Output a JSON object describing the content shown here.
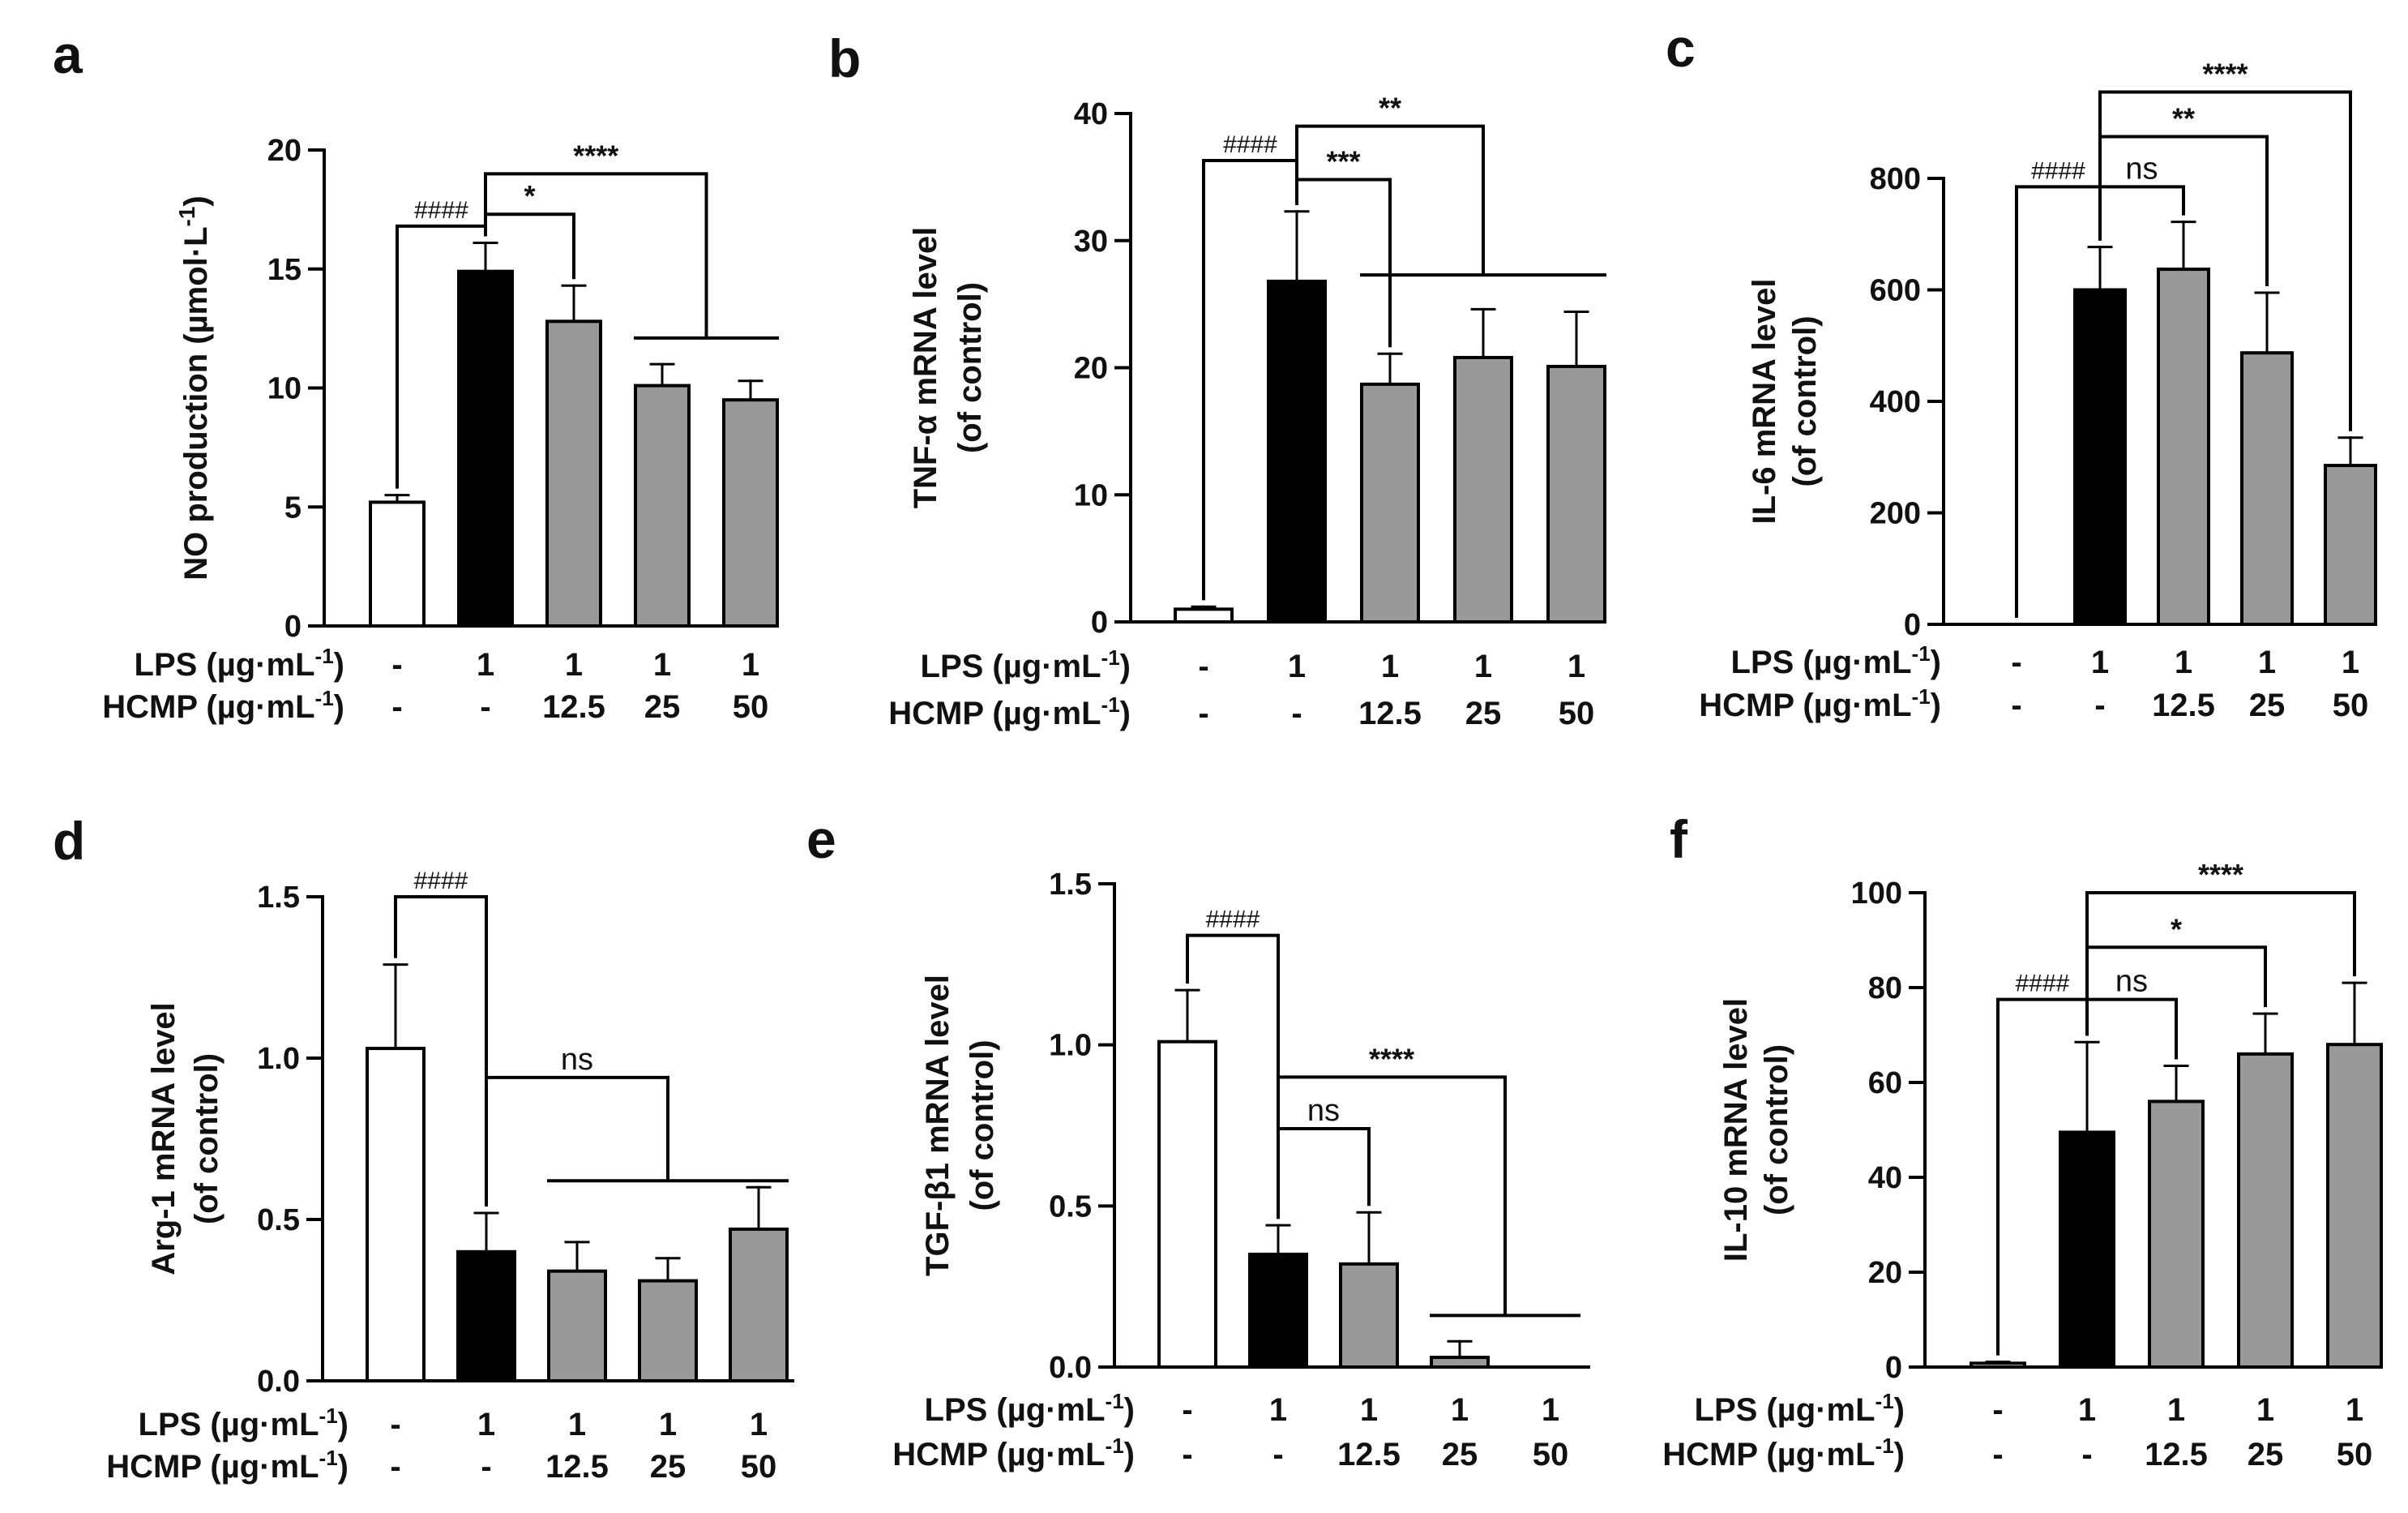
{
  "row_labels": {
    "lps": "LPS (µg·mL",
    "hcmp": "HCMP (µg·mL",
    "exp": "-1",
    "close": ")"
  },
  "chart_data": [
    {
      "panel": "a",
      "type": "bar",
      "ylabel": "NO production (µmol·L",
      "ylabel_sup": "-1",
      "ylabel_close": ")",
      "ylabel2": "",
      "ylim": [
        0,
        20
      ],
      "yticks": [
        "0",
        "5",
        "10",
        "15",
        "20"
      ],
      "ytick_values": [
        0,
        5,
        10,
        15,
        20
      ],
      "lps": [
        "-",
        "1",
        "1",
        "1",
        "1"
      ],
      "hcmp": [
        "-",
        "-",
        "12.5",
        "25",
        "50"
      ],
      "values": [
        5.2,
        14.9,
        12.8,
        10.1,
        9.5
      ],
      "errors": [
        0.3,
        1.2,
        1.5,
        0.9,
        0.8
      ],
      "fills": [
        "white",
        "black",
        "gray",
        "gray",
        "gray"
      ],
      "annotations": [
        {
          "kind": "bracket",
          "from": 0,
          "to": 1,
          "label": "####",
          "style": "hash",
          "level": 16.8
        },
        {
          "kind": "bracket",
          "from": 1,
          "to": 2,
          "label": "*",
          "style": "sig",
          "level": 17.3
        },
        {
          "kind": "group",
          "from": 1,
          "group": [
            3,
            4
          ],
          "label": "****",
          "style": "sig",
          "level": 19.0,
          "group_level": 12.1
        }
      ]
    },
    {
      "panel": "b",
      "type": "bar",
      "ylabel": "TNF-α  mRNA level",
      "ylabel_sup": "",
      "ylabel_close": "",
      "ylabel2": "(of control)",
      "ylim": [
        0,
        40
      ],
      "yticks": [
        "0",
        "10",
        "20",
        "30",
        "40"
      ],
      "ytick_values": [
        0,
        10,
        20,
        30,
        40
      ],
      "lps": [
        "-",
        "1",
        "1",
        "1",
        "1"
      ],
      "hcmp": [
        "-",
        "-",
        "12.5",
        "25",
        "50"
      ],
      "values": [
        1.0,
        26.8,
        18.7,
        20.8,
        20.1
      ],
      "errors": [
        0.2,
        5.5,
        2.4,
        3.8,
        4.3
      ],
      "fills": [
        "white",
        "black",
        "gray",
        "gray",
        "gray"
      ],
      "annotations": [
        {
          "kind": "bracket",
          "from": 0,
          "to": 1,
          "label": "####",
          "style": "hash",
          "level": 36.3
        },
        {
          "kind": "bracket",
          "from": 1,
          "to": 2,
          "label": "***",
          "style": "sig",
          "level": 34.8
        },
        {
          "kind": "group",
          "from": 1,
          "group": [
            2,
            4
          ],
          "label": "**",
          "style": "sig",
          "level": 39.0,
          "group_level": 27.3
        }
      ]
    },
    {
      "panel": "c",
      "type": "bar",
      "ylabel": "IL-6 mRNA level",
      "ylabel_sup": "",
      "ylabel_close": "",
      "ylabel2": "(of control)",
      "ylim": [
        0,
        800
      ],
      "yticks": [
        "0",
        "200",
        "400",
        "600",
        "800"
      ],
      "ytick_values": [
        0,
        200,
        400,
        600,
        800
      ],
      "lps": [
        "-",
        "1",
        "1",
        "1",
        "1"
      ],
      "hcmp": [
        "-",
        "-",
        "12.5",
        "25",
        "50"
      ],
      "values": [
        0,
        600,
        637,
        487,
        285
      ],
      "errors": [
        0,
        77,
        85,
        108,
        50
      ],
      "fills": [
        "white",
        "black",
        "gray",
        "gray",
        "gray"
      ],
      "annotations": [
        {
          "kind": "bracket",
          "from": 0,
          "to": 1,
          "label": "####",
          "style": "hash",
          "level": 785
        },
        {
          "kind": "bracket",
          "from": 1,
          "to": 2,
          "label": "ns",
          "style": "ns",
          "level": 785
        },
        {
          "kind": "bracket",
          "from": 1,
          "to": 3,
          "label": "**",
          "style": "sig",
          "level": 875
        },
        {
          "kind": "bracket",
          "from": 1,
          "to": 4,
          "label": "****",
          "style": "sig",
          "level": 955
        }
      ]
    },
    {
      "panel": "d",
      "type": "bar",
      "ylabel": "Arg-1 mRNA level",
      "ylabel_sup": "",
      "ylabel_close": "",
      "ylabel2": "(of control)",
      "ylim": [
        0,
        1.5
      ],
      "yticks": [
        "0.0",
        "0.5",
        "1.0",
        "1.5"
      ],
      "ytick_values": [
        0,
        0.5,
        1.0,
        1.5
      ],
      "lps": [
        "-",
        "1",
        "1",
        "1",
        "1"
      ],
      "hcmp": [
        "-",
        "-",
        "12.5",
        "25",
        "50"
      ],
      "values": [
        1.03,
        0.4,
        0.34,
        0.31,
        0.47
      ],
      "errors": [
        0.26,
        0.12,
        0.09,
        0.07,
        0.13
      ],
      "fills": [
        "white",
        "black",
        "gray",
        "gray",
        "gray"
      ],
      "annotations": [
        {
          "kind": "bracket",
          "from": 0,
          "to": 1,
          "label": "####",
          "style": "hash",
          "level": 1.5
        },
        {
          "kind": "group",
          "from": 1,
          "group": [
            2,
            4
          ],
          "label": "ns",
          "style": "ns",
          "level": 0.94,
          "group_level": 0.62
        }
      ]
    },
    {
      "panel": "e",
      "type": "bar",
      "ylabel": "TGF-β1 mRNA level",
      "ylabel_sup": "",
      "ylabel_close": "",
      "ylabel2": "(of control)",
      "ylim": [
        0,
        1.5
      ],
      "yticks": [
        "0.0",
        "0.5",
        "1.0",
        "1.5"
      ],
      "ytick_values": [
        0,
        0.5,
        1.0,
        1.5
      ],
      "lps": [
        "-",
        "1",
        "1",
        "1",
        "1"
      ],
      "hcmp": [
        "-",
        "-",
        "12.5",
        "25",
        "50"
      ],
      "values": [
        1.01,
        0.35,
        0.32,
        0.03,
        0.0
      ],
      "errors": [
        0.16,
        0.09,
        0.16,
        0.05,
        0
      ],
      "fills": [
        "white",
        "black",
        "gray",
        "gray",
        "gray"
      ],
      "annotations": [
        {
          "kind": "bracket",
          "from": 0,
          "to": 1,
          "label": "####",
          "style": "hash",
          "level": 1.34
        },
        {
          "kind": "bracket",
          "from": 1,
          "to": 2,
          "label": "ns",
          "style": "ns",
          "level": 0.74
        },
        {
          "kind": "group",
          "from": 1,
          "group": [
            3,
            4
          ],
          "label": "****",
          "style": "sig",
          "level": 0.9,
          "group_level": 0.16
        }
      ]
    },
    {
      "panel": "f",
      "type": "bar",
      "ylabel": "IL-10 mRNA level",
      "ylabel_sup": "",
      "ylabel_close": "",
      "ylabel2": "(of control)",
      "ylim": [
        0,
        100
      ],
      "yticks": [
        "0",
        "20",
        "40",
        "60",
        "80",
        "100"
      ],
      "ytick_values": [
        0,
        20,
        40,
        60,
        80,
        100
      ],
      "lps": [
        "-",
        "1",
        "1",
        "1",
        "1"
      ],
      "hcmp": [
        "-",
        "-",
        "12.5",
        "25",
        "50"
      ],
      "values": [
        0.8,
        49.5,
        56,
        66,
        68
      ],
      "errors": [
        0.3,
        19,
        7.5,
        8.5,
        13
      ],
      "fills": [
        "white",
        "black",
        "gray",
        "gray",
        "gray"
      ],
      "annotations": [
        {
          "kind": "bracket",
          "from": 0,
          "to": 1,
          "label": "####",
          "style": "hash",
          "level": 77.5
        },
        {
          "kind": "bracket",
          "from": 1,
          "to": 2,
          "label": "ns",
          "style": "ns",
          "level": 77.5
        },
        {
          "kind": "bracket",
          "from": 1,
          "to": 3,
          "label": "*",
          "style": "sig",
          "level": 88.5
        },
        {
          "kind": "bracket",
          "from": 1,
          "to": 4,
          "label": "****",
          "style": "sig",
          "level": 100
        }
      ]
    }
  ]
}
